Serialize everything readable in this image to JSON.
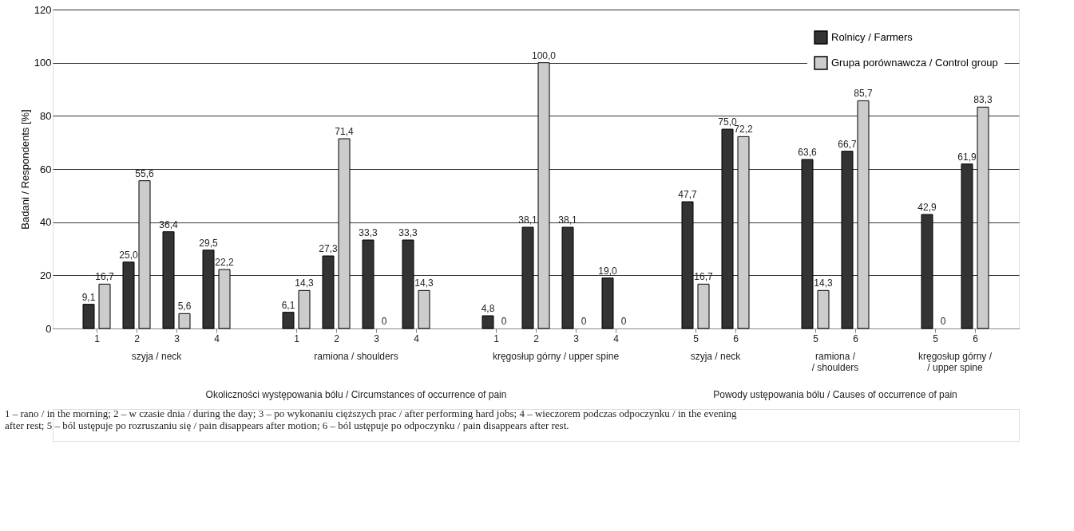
{
  "chart_data": {
    "type": "bar",
    "ylabel": "Badani / Respondents [%]",
    "categories": [
      "1",
      "2",
      "3",
      "4",
      null,
      "1",
      "2",
      "3",
      "4",
      null,
      "1",
      "2",
      "3",
      "4",
      null,
      "5",
      "6",
      null,
      "5",
      "6",
      null,
      "5",
      "6"
    ],
    "series": [
      {
        "name": "Rolnicy / Farmers",
        "color": "#333333",
        "values": [
          9.1,
          25.0,
          36.4,
          29.5,
          null,
          6.1,
          27.3,
          33.3,
          33.3,
          null,
          4.8,
          38.1,
          38.1,
          19.0,
          null,
          47.7,
          75.0,
          null,
          63.6,
          66.7,
          null,
          42.9,
          61.9
        ],
        "value_labels": [
          "9,1",
          "25,0",
          "36,4",
          "29,5",
          null,
          "6,1",
          "27,3",
          "33,3",
          "33,3",
          null,
          "4,8",
          "38,1",
          "38,1",
          "19,0",
          null,
          "47,7",
          "75,0",
          null,
          "63,6",
          "66,7",
          null,
          "42,9",
          "61,9"
        ]
      },
      {
        "name": "Grupa porównawcza / Control group",
        "color": "#cccccc",
        "values": [
          16.7,
          55.6,
          5.6,
          22.2,
          null,
          14.3,
          71.4,
          0,
          14.3,
          null,
          0,
          100.0,
          0,
          0,
          null,
          16.7,
          72.2,
          null,
          14.3,
          85.7,
          null,
          0,
          83.3
        ],
        "value_labels": [
          "16,7",
          "55,6",
          "5,6",
          "22,2",
          null,
          "14,3",
          "71,4",
          "0",
          "14,3",
          null,
          "0",
          "100,0",
          "0",
          "0",
          null,
          "16,7",
          "72,2",
          null,
          "14,3",
          "85,7",
          null,
          "0",
          "83,3"
        ]
      }
    ],
    "ylim": [
      0,
      120
    ],
    "yticks": [
      0,
      20,
      40,
      60,
      80,
      100,
      120
    ],
    "grid": "y",
    "legend": "top right",
    "annotations": [
      "szyja / neck",
      "ramiona / shoulders",
      "kręgosłup górny / upper spine",
      "szyja / neck",
      "ramiona /\n/  shoulders",
      "kręgosłup górny /\n/ upper spine",
      "Okoliczności występowania bólu / Circumstances of occurrence of pain",
      "Powody ustępowania bólu / Causes of occurrence of pain",
      "1 – rano / in the morning; 2 – w czasie dnia / during the day; 3 – po wykonaniu cięższych prac / after performing hard jobs; 4 – wieczorem podczas odpoczynku / in the evening\nafter rest; 5 – ból ustępuje po rozruszaniu się / pain disappears after motion; 6 – ból ustępuje po odpoczynku / pain disappears after rest."
    ]
  }
}
